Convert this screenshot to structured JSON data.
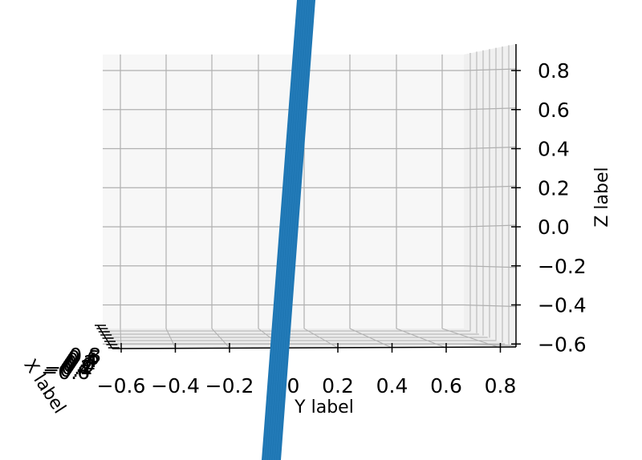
{
  "chart_data": {
    "type": "surface-3d",
    "xlabel": "X label",
    "ylabel": "Y label",
    "zlabel": "Z label",
    "x_ticks": [
      "0.8",
      "0.6",
      "0.4",
      "0.2",
      "0.0",
      "−0.2",
      "−0.4",
      "−0.6"
    ],
    "y_ticks": [
      "−0.6",
      "−0.4",
      "−0.2",
      "0.0",
      "0.2",
      "0.4",
      "0.6",
      "0.8"
    ],
    "z_ticks": [
      "0.8",
      "0.6",
      "0.4",
      "0.2",
      "0.0",
      "−0.2",
      "−0.4",
      "−0.6"
    ],
    "y_tick_values": [
      -0.6,
      -0.4,
      -0.2,
      0.0,
      0.2,
      0.4,
      0.6,
      0.8
    ],
    "z_tick_values": [
      0.8,
      0.6,
      0.4,
      0.2,
      0.0,
      -0.2,
      -0.4,
      -0.6
    ],
    "ylim": [
      -0.7,
      0.9
    ],
    "zlim": [
      -0.65,
      0.9
    ],
    "grid": true,
    "surface_color": "#1f77b4",
    "pane_color": "#f7f7f7",
    "grid_color": "#b0b0b0"
  }
}
